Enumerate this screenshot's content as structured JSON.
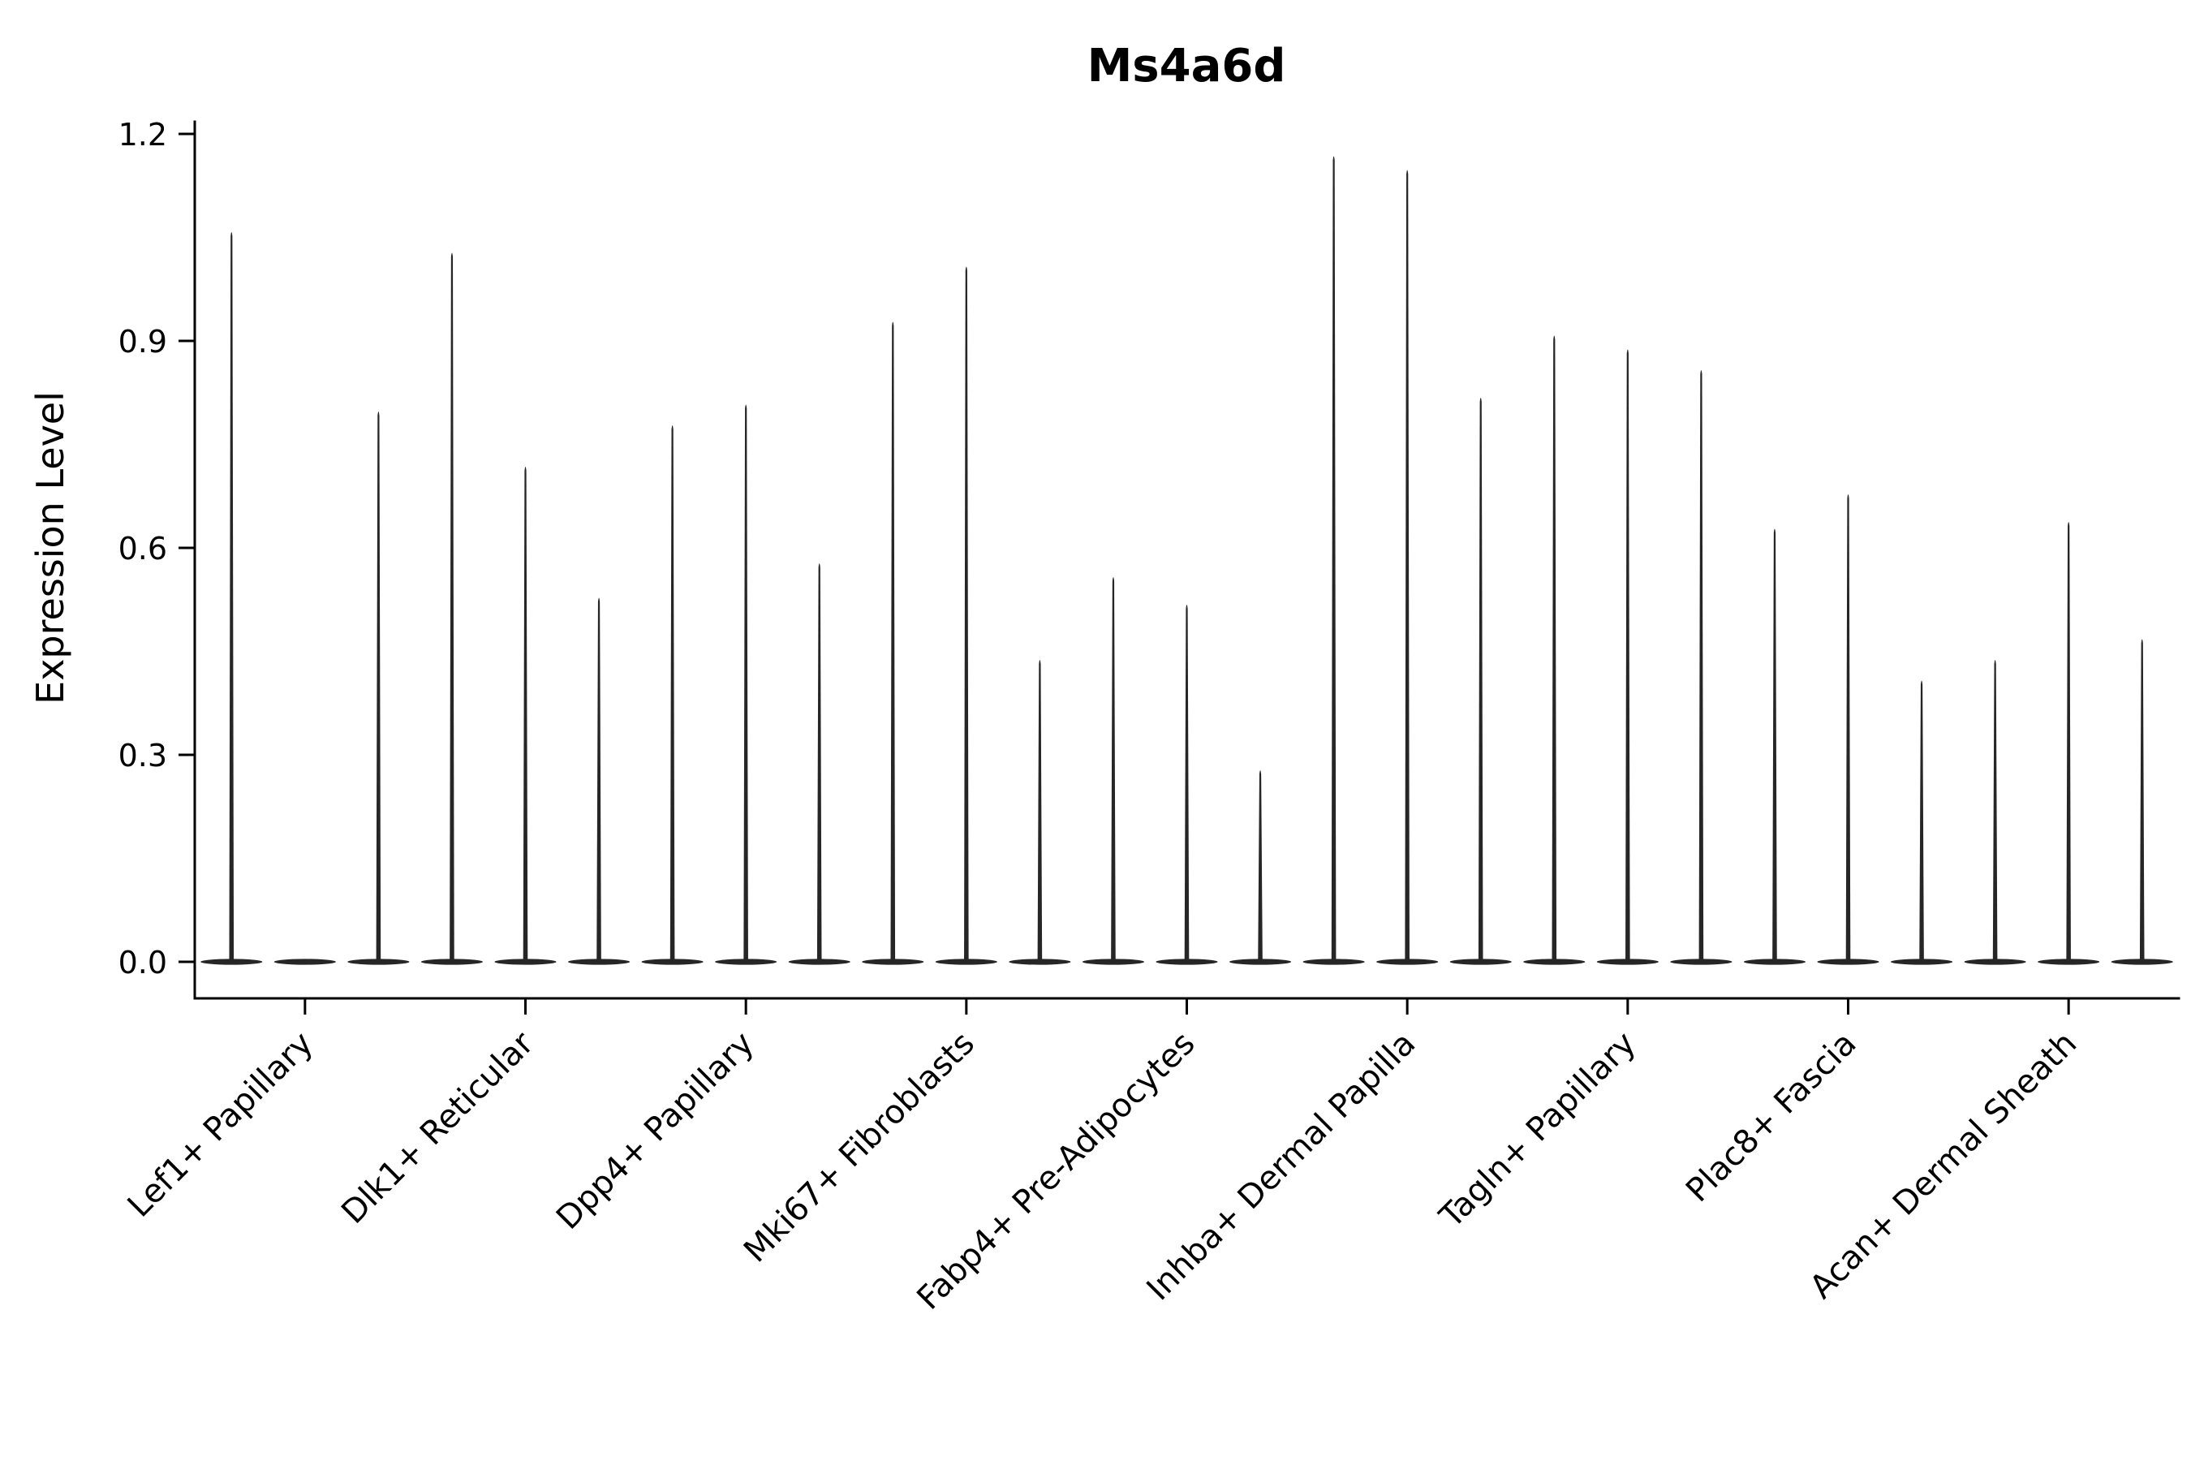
{
  "figure": {
    "background": "#ffffff"
  },
  "chart_data": {
    "type": "violin",
    "title": "Ms4a6d",
    "ylabel": "Expression Level",
    "xlabel": "",
    "ylim": [
      0,
      1.2
    ],
    "yticks": [
      0,
      0.3,
      0.6,
      0.9,
      1.2
    ],
    "ytick_labels": [
      "0.0",
      "0.3",
      "0.6",
      "0.9",
      "1.2"
    ],
    "grid": false,
    "legend": "none",
    "categories": [
      "Lef1+ Papillary",
      "Dlk1+ Reticular",
      "Dpp4+ Papillary",
      "Mki67+ Fibroblasts",
      "Fabp4+ Pre-Adipocytes",
      "Inhba+ Dermal Papilla",
      "Tagln+ Papillary",
      "Plac8+ Fascia",
      "Acan+ Dermal Sheath"
    ],
    "violins_per_category": 3,
    "description": "Each category shows 3 very narrow violins: a flat bulge at 0 (most cells non-expressing) with a thin spike rising to the maximum expression value; 0 means a flat violin with no spike.",
    "violin_max_values": [
      [
        1.06,
        0.0,
        0.8
      ],
      [
        1.03,
        0.72,
        0.53
      ],
      [
        0.78,
        0.81,
        0.58
      ],
      [
        0.93,
        1.01,
        0.44
      ],
      [
        0.56,
        0.52,
        0.28
      ],
      [
        1.17,
        1.15,
        0.82
      ],
      [
        0.91,
        0.89,
        0.86
      ],
      [
        0.63,
        0.68,
        0.41
      ],
      [
        0.44,
        0.64,
        0.47
      ]
    ],
    "violin_color": "#262626",
    "axis_color": "#000000",
    "text_color": "#000000"
  }
}
